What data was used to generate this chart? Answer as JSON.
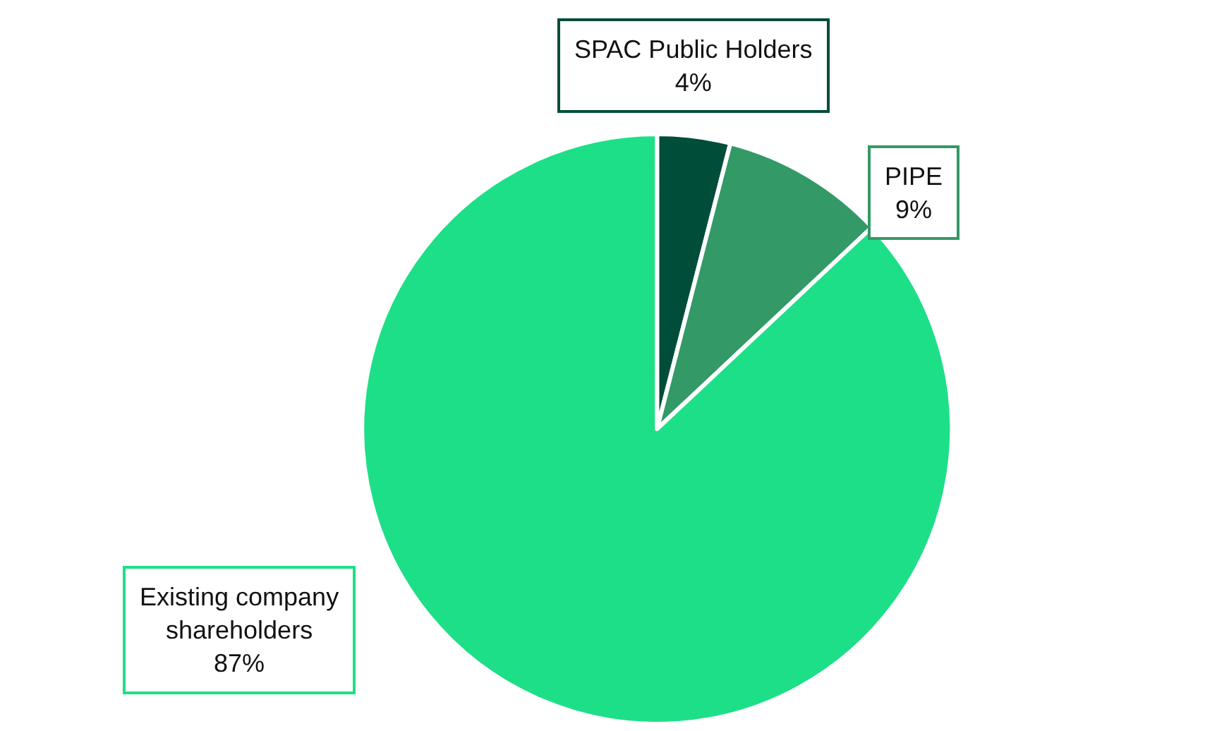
{
  "chart_data": {
    "type": "pie",
    "categories": [
      "SPAC Public Holders",
      "PIPE",
      "Existing company shareholders"
    ],
    "values": [
      4,
      9,
      87
    ],
    "value_labels": [
      "4%",
      "9%",
      "87%"
    ],
    "colors": [
      "#004d3a",
      "#339966",
      "#1ddf87"
    ],
    "legend": false
  }
}
